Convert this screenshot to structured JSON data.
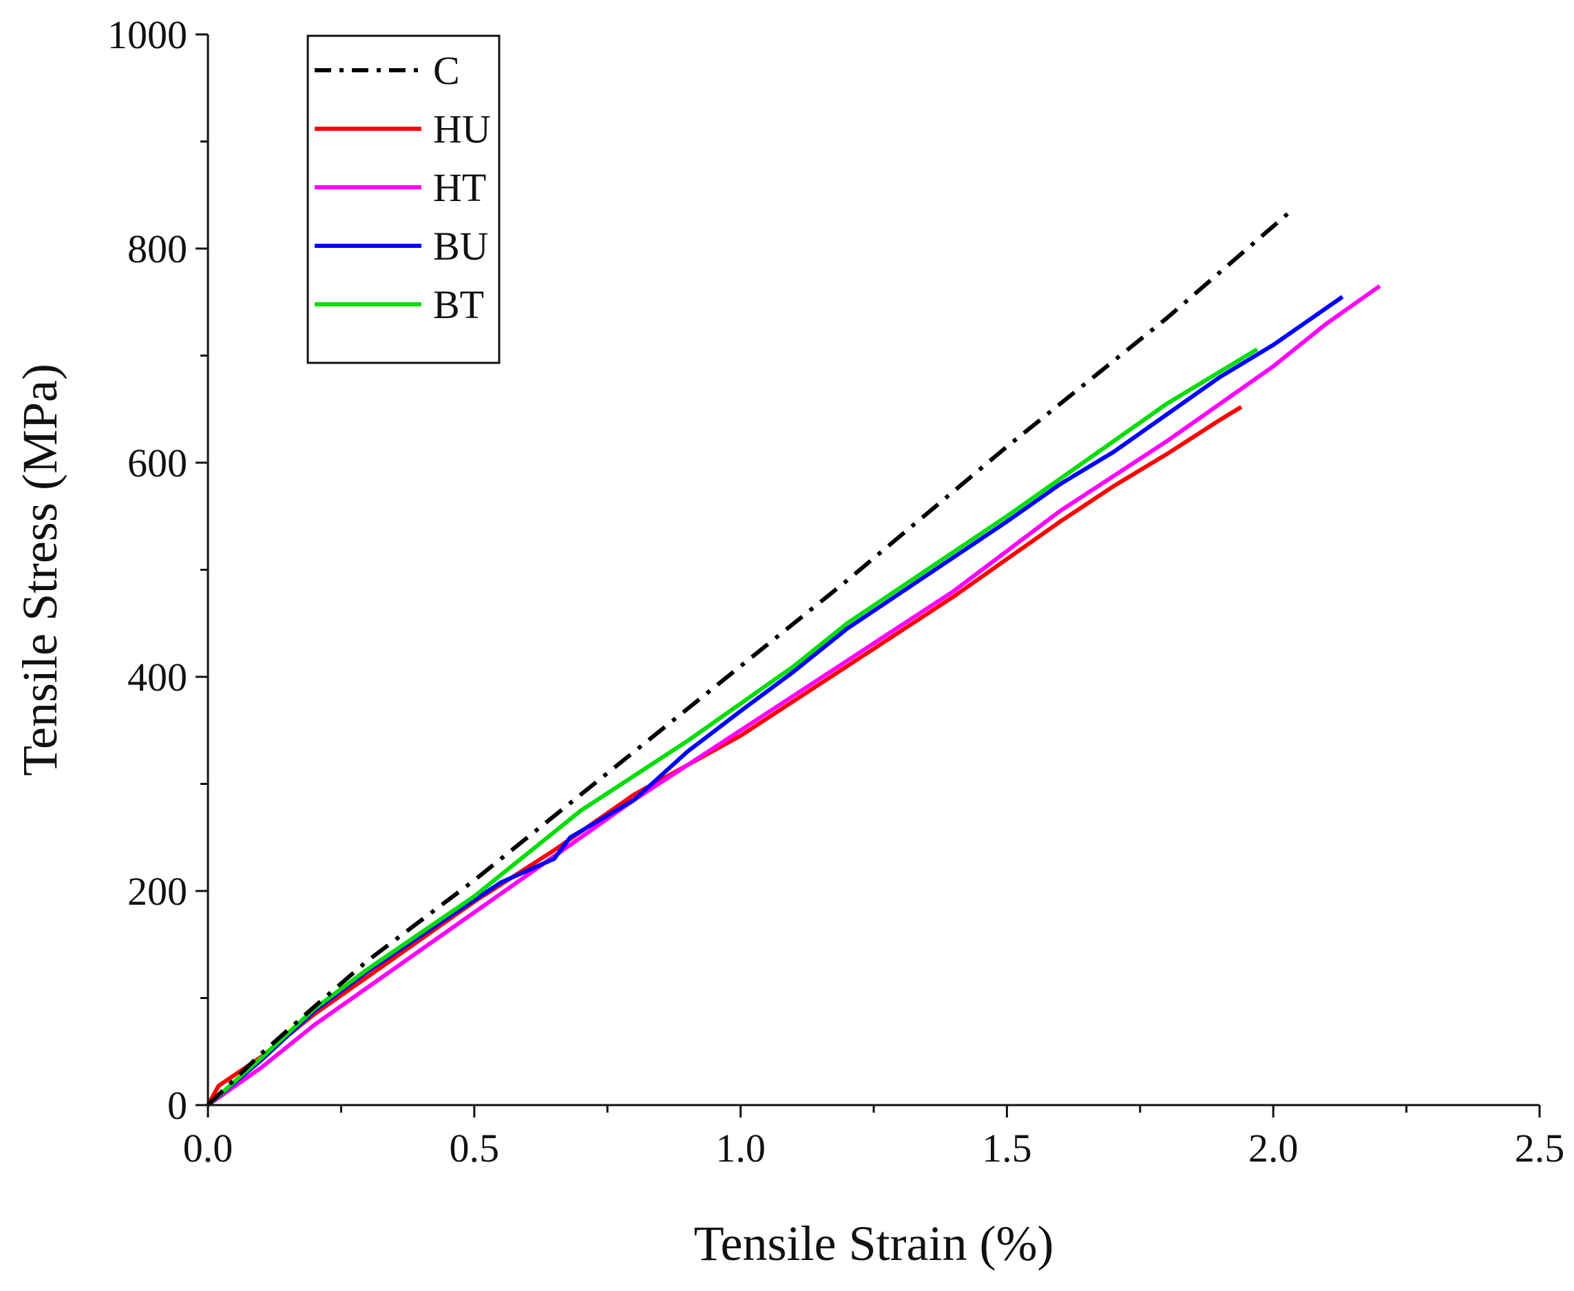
{
  "chart_data": {
    "type": "line",
    "title": "",
    "xlabel": "Tensile Strain (%)",
    "ylabel": "Tensile Stress (MPa)",
    "xlim": [
      0,
      2.5
    ],
    "ylim": [
      0,
      1000
    ],
    "x_ticks": [
      0.0,
      0.5,
      1.0,
      1.5,
      2.0,
      2.5
    ],
    "x_tick_labels": [
      "0.0",
      "0.5",
      "1.0",
      "1.5",
      "2.0",
      "2.5"
    ],
    "y_ticks": [
      0,
      200,
      400,
      600,
      800,
      1000
    ],
    "y_tick_labels": [
      "0",
      "200",
      "400",
      "600",
      "800",
      "1000"
    ],
    "legend_position": "top-left",
    "series": [
      {
        "name": "C",
        "color": "#000000",
        "dash": "dash-dot",
        "points": [
          [
            0,
            0
          ],
          [
            0.1,
            48
          ],
          [
            0.2,
            92
          ],
          [
            0.3,
            135
          ],
          [
            0.5,
            210
          ],
          [
            0.7,
            290
          ],
          [
            1.0,
            410
          ],
          [
            1.2,
            490
          ],
          [
            1.5,
            615
          ],
          [
            1.8,
            735
          ],
          [
            2.04,
            838
          ]
        ]
      },
      {
        "name": "HU",
        "color": "#ff0000",
        "dash": "solid",
        "points": [
          [
            0,
            0
          ],
          [
            0.02,
            18
          ],
          [
            0.1,
            45
          ],
          [
            0.2,
            85
          ],
          [
            0.3,
            120
          ],
          [
            0.5,
            190
          ],
          [
            0.65,
            238
          ],
          [
            0.8,
            290
          ],
          [
            1.0,
            345
          ],
          [
            1.2,
            410
          ],
          [
            1.4,
            475
          ],
          [
            1.5,
            510
          ],
          [
            1.6,
            545
          ],
          [
            1.7,
            578
          ],
          [
            1.8,
            608
          ],
          [
            1.9,
            640
          ],
          [
            1.94,
            652
          ]
        ]
      },
      {
        "name": "HT",
        "color": "#ff00ff",
        "dash": "solid",
        "points": [
          [
            0,
            0
          ],
          [
            0.1,
            35
          ],
          [
            0.2,
            75
          ],
          [
            0.4,
            145
          ],
          [
            0.6,
            215
          ],
          [
            0.8,
            285
          ],
          [
            1.0,
            350
          ],
          [
            1.2,
            415
          ],
          [
            1.4,
            480
          ],
          [
            1.6,
            555
          ],
          [
            1.8,
            620
          ],
          [
            2.0,
            690
          ],
          [
            2.1,
            730
          ],
          [
            2.2,
            765
          ]
        ]
      },
      {
        "name": "BU",
        "color": "#0000ff",
        "dash": "solid",
        "points": [
          [
            0,
            0
          ],
          [
            0.1,
            42
          ],
          [
            0.2,
            88
          ],
          [
            0.3,
            125
          ],
          [
            0.45,
            175
          ],
          [
            0.55,
            208
          ],
          [
            0.65,
            230
          ],
          [
            0.68,
            250
          ],
          [
            0.8,
            285
          ],
          [
            0.9,
            330
          ],
          [
            1.0,
            368
          ],
          [
            1.1,
            405
          ],
          [
            1.2,
            445
          ],
          [
            1.35,
            495
          ],
          [
            1.5,
            545
          ],
          [
            1.6,
            580
          ],
          [
            1.7,
            610
          ],
          [
            1.8,
            645
          ],
          [
            1.9,
            680
          ],
          [
            2.0,
            710
          ],
          [
            2.13,
            755
          ]
        ]
      },
      {
        "name": "BT",
        "color": "#00dd00",
        "dash": "solid",
        "points": [
          [
            0,
            0
          ],
          [
            0.1,
            44
          ],
          [
            0.2,
            90
          ],
          [
            0.3,
            127
          ],
          [
            0.5,
            195
          ],
          [
            0.7,
            275
          ],
          [
            0.9,
            340
          ],
          [
            1.0,
            375
          ],
          [
            1.1,
            410
          ],
          [
            1.2,
            450
          ],
          [
            1.35,
            500
          ],
          [
            1.5,
            550
          ],
          [
            1.6,
            585
          ],
          [
            1.7,
            620
          ],
          [
            1.8,
            655
          ],
          [
            1.9,
            685
          ],
          [
            1.97,
            706
          ]
        ]
      }
    ]
  }
}
